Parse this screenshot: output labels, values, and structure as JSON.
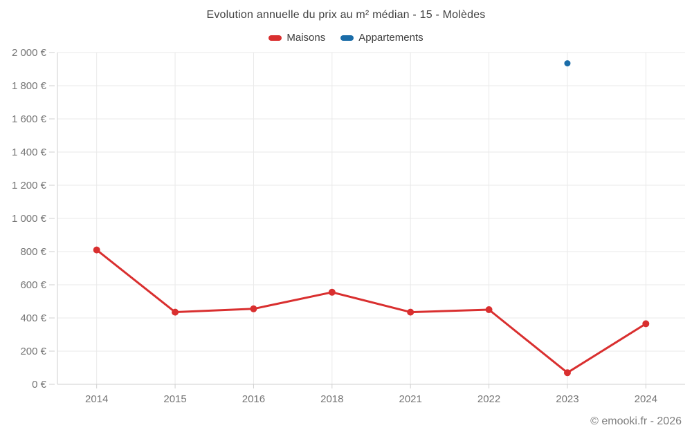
{
  "chart": {
    "title": "Evolution annuelle du prix au m² médian - 15 - Molèdes"
  },
  "footer": {
    "copyright": "© emooki.fr - 2026"
  },
  "chart_data": {
    "type": "line",
    "title": "Evolution annuelle du prix au m² médian - 15 - Molèdes",
    "categories": [
      "2014",
      "2015",
      "2016",
      "2018",
      "2021",
      "2022",
      "2023",
      "2024"
    ],
    "series": [
      {
        "name": "Maisons",
        "color": "#d92f2f",
        "values": [
          810,
          435,
          455,
          555,
          435,
          450,
          70,
          365
        ]
      },
      {
        "name": "Appartements",
        "color": "#1a6ca8",
        "points_only": true,
        "values": [
          null,
          null,
          null,
          null,
          null,
          null,
          1935,
          null
        ]
      }
    ],
    "xlabel": "",
    "ylabel": "",
    "ylim": [
      0,
      2000
    ],
    "y_ticks": [
      {
        "value": 0,
        "label": "0 €"
      },
      {
        "value": 200,
        "label": "200 €"
      },
      {
        "value": 400,
        "label": "400 €"
      },
      {
        "value": 600,
        "label": "600 €"
      },
      {
        "value": 800,
        "label": "800 €"
      },
      {
        "value": 1000,
        "label": "1 000 €"
      },
      {
        "value": 1200,
        "label": "1 200 €"
      },
      {
        "value": 1400,
        "label": "1 400 €"
      },
      {
        "value": 1600,
        "label": "1 600 €"
      },
      {
        "value": 1800,
        "label": "1 800 €"
      },
      {
        "value": 2000,
        "label": "2 000 €"
      }
    ],
    "grid": true,
    "legend_position": "top"
  }
}
